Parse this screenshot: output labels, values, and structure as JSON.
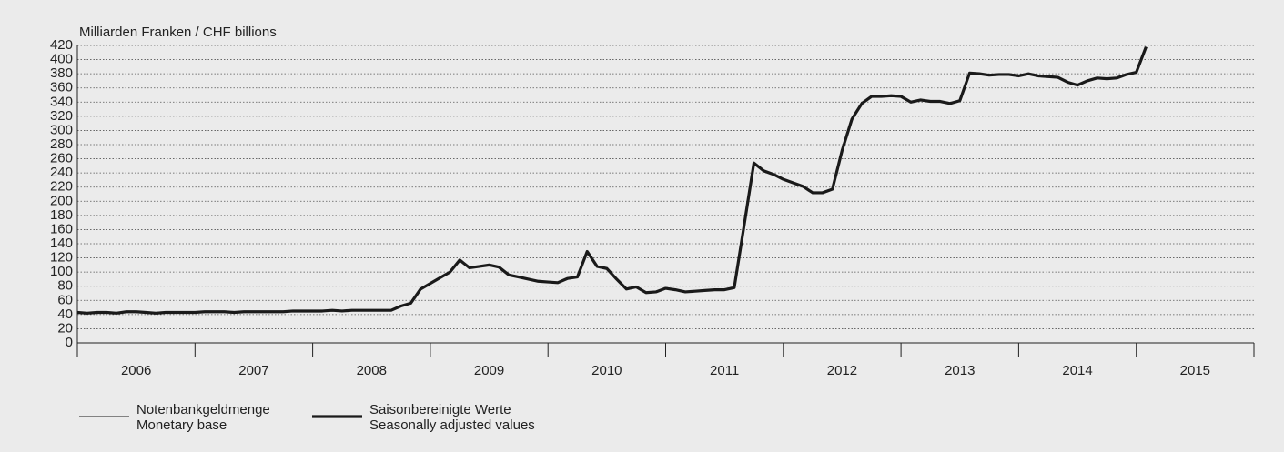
{
  "chart_data": {
    "type": "line",
    "ylabel": "Milliarden Franken / CHF billions",
    "ylim": [
      0,
      420
    ],
    "yticks": [
      0,
      20,
      40,
      60,
      80,
      100,
      120,
      140,
      160,
      180,
      200,
      220,
      240,
      260,
      280,
      300,
      320,
      340,
      360,
      380,
      400,
      420
    ],
    "grid": true,
    "xlim": [
      2006,
      2016
    ],
    "xticks": [
      2006,
      2007,
      2008,
      2009,
      2010,
      2011,
      2012,
      2013,
      2014,
      2015,
      2016
    ],
    "year_labels": [
      "2006",
      "2007",
      "2008",
      "2009",
      "2010",
      "2011",
      "2012",
      "2013",
      "2014",
      "2015"
    ],
    "x": [
      2006,
      2006.083,
      2006.167,
      2006.25,
      2006.333,
      2006.417,
      2006.5,
      2006.583,
      2006.667,
      2006.75,
      2006.833,
      2006.917,
      2007,
      2007.083,
      2007.167,
      2007.25,
      2007.333,
      2007.417,
      2007.5,
      2007.583,
      2007.667,
      2007.75,
      2007.833,
      2007.917,
      2008,
      2008.083,
      2008.167,
      2008.25,
      2008.333,
      2008.417,
      2008.5,
      2008.583,
      2008.667,
      2008.75,
      2008.833,
      2008.917,
      2009,
      2009.083,
      2009.167,
      2009.25,
      2009.333,
      2009.417,
      2009.5,
      2009.583,
      2009.667,
      2009.75,
      2009.833,
      2009.917,
      2010,
      2010.083,
      2010.167,
      2010.25,
      2010.333,
      2010.417,
      2010.5,
      2010.583,
      2010.667,
      2010.75,
      2010.833,
      2010.917,
      2011,
      2011.083,
      2011.167,
      2011.25,
      2011.333,
      2011.417,
      2011.5,
      2011.583,
      2011.667,
      2011.75,
      2011.833,
      2011.917,
      2012,
      2012.083,
      2012.167,
      2012.25,
      2012.333,
      2012.417,
      2012.5,
      2012.583,
      2012.667,
      2012.75,
      2012.833,
      2012.917,
      2013,
      2013.083,
      2013.167,
      2013.25,
      2013.333,
      2013.417,
      2013.5,
      2013.583,
      2013.667,
      2013.75,
      2013.833,
      2013.917,
      2014,
      2014.083,
      2014.167,
      2014.25,
      2014.333,
      2014.417,
      2014.5,
      2014.583,
      2014.667,
      2014.75,
      2014.833,
      2014.917,
      2015,
      2015.083
    ],
    "series": [
      {
        "name": [
          "Notenbankgeldmenge",
          "Monetary base"
        ],
        "color": "#1a1a1a",
        "width": 1,
        "values": [
          43,
          42,
          43,
          43,
          42,
          44,
          44,
          43,
          42,
          43,
          43,
          43,
          43,
          44,
          44,
          44,
          43,
          44,
          44,
          44,
          44,
          44,
          45,
          45,
          45,
          45,
          46,
          45,
          46,
          46,
          46,
          46,
          46,
          52,
          56,
          76,
          84,
          92,
          100,
          117,
          106,
          108,
          110,
          107,
          96,
          93,
          90,
          87,
          86,
          85,
          91,
          93,
          129,
          108,
          105,
          90,
          76,
          79,
          71,
          72,
          77,
          75,
          72,
          73,
          74,
          75,
          75,
          78,
          166,
          254,
          243,
          238,
          231,
          226,
          221,
          212,
          212,
          217,
          272,
          316,
          338,
          348,
          348,
          349,
          348,
          340,
          343,
          341,
          341,
          338,
          342,
          381,
          380,
          378,
          379,
          379,
          377,
          380,
          377,
          376,
          375,
          368,
          364,
          370,
          374,
          373,
          374,
          379,
          382,
          418
        ]
      },
      {
        "name": [
          "Saisonbereinigte Werte",
          "Seasonally adjusted values"
        ],
        "color": "#1a1a1a",
        "width": 3.2,
        "values": [
          43,
          42,
          43,
          43,
          42,
          44,
          44,
          43,
          42,
          43,
          43,
          43,
          43,
          44,
          44,
          44,
          43,
          44,
          44,
          44,
          44,
          44,
          45,
          45,
          45,
          45,
          46,
          45,
          46,
          46,
          46,
          46,
          46,
          52,
          56,
          76,
          84,
          92,
          100,
          117,
          106,
          108,
          110,
          107,
          96,
          93,
          90,
          87,
          86,
          85,
          91,
          93,
          129,
          108,
          105,
          90,
          76,
          79,
          71,
          72,
          77,
          75,
          72,
          73,
          74,
          75,
          75,
          78,
          166,
          254,
          243,
          238,
          231,
          226,
          221,
          212,
          212,
          217,
          272,
          316,
          338,
          348,
          348,
          349,
          348,
          340,
          343,
          341,
          341,
          338,
          342,
          381,
          380,
          378,
          379,
          379,
          377,
          380,
          377,
          376,
          375,
          368,
          364,
          370,
          374,
          373,
          374,
          379,
          382,
          418
        ]
      }
    ]
  }
}
